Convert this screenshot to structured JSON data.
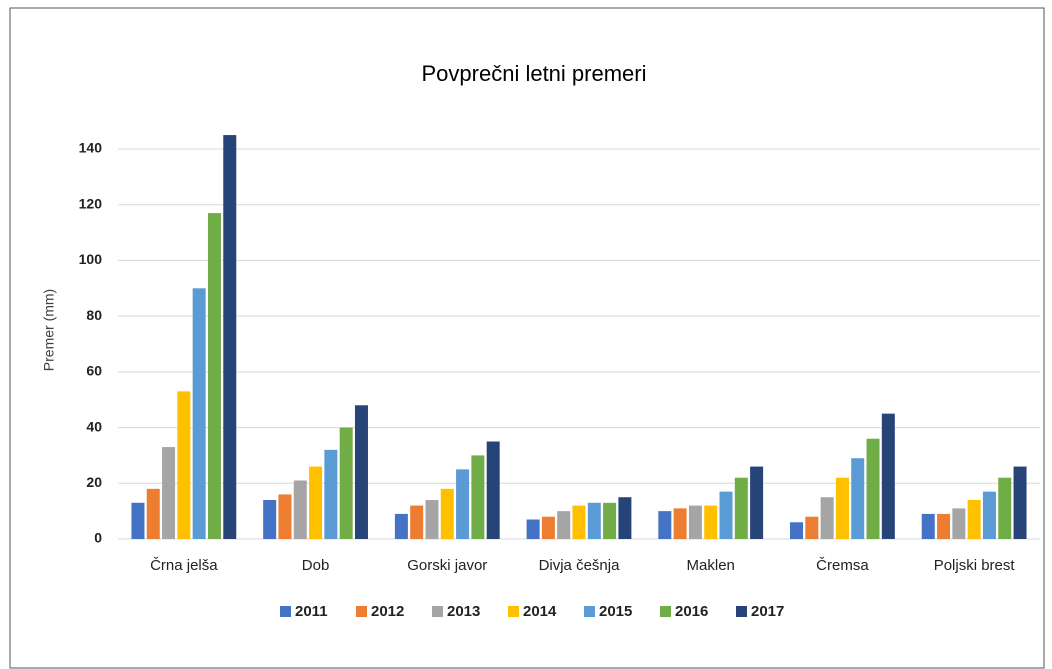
{
  "chart_data": {
    "type": "bar",
    "title": "Povprečni letni premeri",
    "y_label": "Premer (mm)",
    "categories": [
      "Črna jelša",
      "Dob",
      "Gorski javor",
      "Divja češnja",
      "Maklen",
      "Čremsa",
      "Poljski brest"
    ],
    "series": [
      {
        "name": "2011",
        "color": "#4472c4",
        "values": [
          13,
          14,
          9,
          7,
          10,
          6,
          9
        ]
      },
      {
        "name": "2012",
        "color": "#ed7d31",
        "values": [
          18,
          16,
          12,
          8,
          11,
          8,
          9
        ]
      },
      {
        "name": "2013",
        "color": "#a5a5a5",
        "values": [
          33,
          21,
          14,
          10,
          12,
          15,
          11
        ]
      },
      {
        "name": "2014",
        "color": "#ffc000",
        "values": [
          53,
          26,
          18,
          12,
          12,
          22,
          14
        ]
      },
      {
        "name": "2015",
        "color": "#5b9bd5",
        "values": [
          90,
          32,
          25,
          13,
          17,
          29,
          17
        ]
      },
      {
        "name": "2016",
        "color": "#70ad47",
        "values": [
          117,
          40,
          30,
          13,
          22,
          36,
          22
        ]
      },
      {
        "name": "2017",
        "color": "#264478",
        "values": [
          145,
          48,
          35,
          15,
          26,
          45,
          26
        ]
      }
    ],
    "ylim": [
      0,
      140
    ],
    "yticks": [
      0,
      20,
      40,
      60,
      80,
      100,
      120,
      140
    ],
    "grid": true,
    "legend": "bottom"
  }
}
